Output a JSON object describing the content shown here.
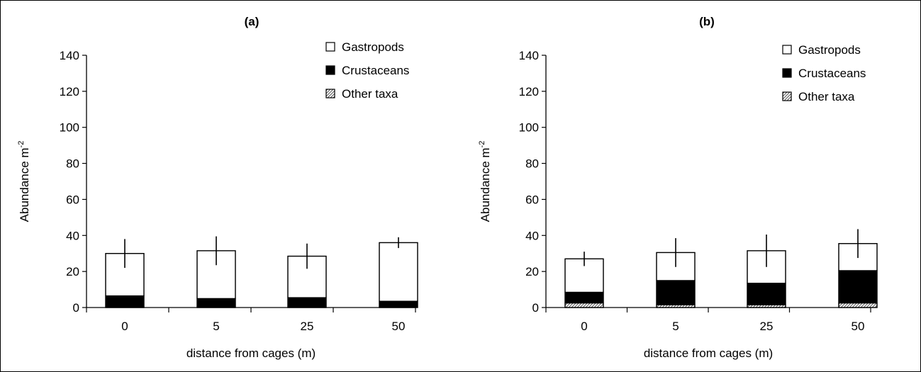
{
  "chart_data": [
    {
      "type": "bar",
      "stacked": true,
      "title": "(a)",
      "xlabel": "distance from cages (m)",
      "ylabel": "Abundance m",
      "ylabel_superscript": "-2",
      "ylim": [
        0,
        140
      ],
      "yticks": [
        "0",
        "20",
        "40",
        "60",
        "80",
        "100",
        "120",
        "140"
      ],
      "categories": [
        "0",
        "5",
        "25",
        "50"
      ],
      "series": [
        {
          "name": "Other taxa",
          "values": [
            0,
            0,
            0,
            0
          ]
        },
        {
          "name": "Crustaceans",
          "values": [
            6.5,
            5,
            5.5,
            3.5
          ]
        },
        {
          "name": "Gastropods",
          "values": [
            23.5,
            26.5,
            23,
            32.5
          ]
        }
      ],
      "totals": [
        30,
        31.5,
        28.5,
        36
      ],
      "error_bars": [
        8,
        8,
        7,
        3
      ],
      "legend": [
        "Gastropods",
        "Crustaceans",
        "Other taxa"
      ],
      "legend_position": "top-right",
      "grid": false
    },
    {
      "type": "bar",
      "stacked": true,
      "title": "(b)",
      "xlabel": "distance from cages (m)",
      "ylabel": "Abundance m",
      "ylabel_superscript": "-2",
      "ylim": [
        0,
        140
      ],
      "yticks": [
        "0",
        "20",
        "40",
        "60",
        "80",
        "100",
        "120",
        "140"
      ],
      "categories": [
        "0",
        "5",
        "25",
        "50"
      ],
      "series": [
        {
          "name": "Other taxa",
          "values": [
            2.5,
            1.5,
            1.5,
            2.5
          ]
        },
        {
          "name": "Crustaceans",
          "values": [
            6,
            13.5,
            12,
            18
          ]
        },
        {
          "name": "Gastropods",
          "values": [
            18.5,
            15.5,
            18,
            15
          ]
        }
      ],
      "totals": [
        27,
        30.5,
        31.5,
        35.5
      ],
      "error_bars": [
        4,
        8,
        9,
        8
      ],
      "legend": [
        "Gastropods",
        "Crustaceans",
        "Other taxa"
      ],
      "legend_position": "top-right",
      "grid": false
    }
  ],
  "colors": {
    "gastropods": "#ffffff",
    "crustaceans": "#000000",
    "other_taxa": "#b0b0b0",
    "axis": "#000000"
  }
}
